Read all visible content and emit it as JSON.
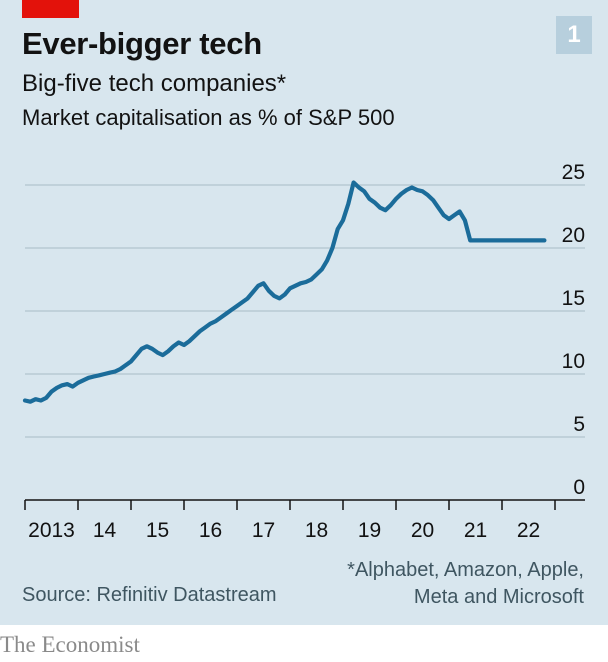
{
  "badge": "1",
  "title": "Ever-bigger tech",
  "subtitle": "Big-five tech companies*",
  "unit_label": "Market capitalisation as % of S&P 500",
  "footnote": [
    "*Alphabet, Amazon, Apple,",
    "Meta and Microsoft"
  ],
  "source": "Source: Refinitiv Datastream",
  "brand": "The Economist",
  "colors": {
    "line": "#1b6c9a",
    "panel": "#d8e6ee",
    "red_tag": "#e3120b",
    "badge": "#b7cfdd",
    "grid": "#a9bcc6"
  },
  "chart_data": {
    "type": "line",
    "title": "Big-five tech companies*",
    "ylabel": "Market capitalisation as % of S&P 500",
    "ylim": [
      0,
      25
    ],
    "yticks": [
      0,
      5,
      10,
      15,
      20,
      25
    ],
    "xlim": [
      2013.0,
      2023.0
    ],
    "xticks": [
      2013,
      2014,
      2015,
      2016,
      2017,
      2018,
      2019,
      2020,
      2021,
      2022,
      2023
    ],
    "xtick_labels": [
      "2013",
      "14",
      "15",
      "16",
      "17",
      "18",
      "19",
      "20",
      "21",
      "22"
    ],
    "grid": true,
    "series": [
      {
        "x": [
          2013.0,
          2013.1,
          2013.2,
          2013.3,
          2013.4,
          2013.5,
          2013.6,
          2013.7,
          2013.8,
          2013.9,
          2014.0,
          2014.1,
          2014.2,
          2014.3,
          2014.4,
          2014.5,
          2014.6,
          2014.7,
          2014.8,
          2014.9,
          2015.0,
          2015.1,
          2015.2,
          2015.3,
          2015.4,
          2015.5,
          2015.6,
          2015.7,
          2015.8,
          2015.9,
          2016.0,
          2016.1,
          2016.2,
          2016.3,
          2016.4,
          2016.5,
          2016.6,
          2016.7,
          2016.8,
          2016.9,
          2017.0,
          2017.1,
          2017.2,
          2017.3,
          2017.4,
          2017.5,
          2017.6,
          2017.7,
          2017.8,
          2017.9,
          2018.0,
          2018.1,
          2018.2,
          2018.3,
          2018.4,
          2018.5,
          2018.6,
          2018.7,
          2018.8,
          2018.9,
          2019.0,
          2019.1,
          2019.2,
          2019.3,
          2019.4,
          2019.5,
          2019.6,
          2019.7,
          2019.8,
          2019.9,
          2020.0,
          2020.1,
          2020.2,
          2020.3,
          2020.4,
          2020.5,
          2020.6,
          2020.7,
          2020.8,
          2020.9,
          2021.0,
          2021.1,
          2021.2,
          2021.3,
          2021.4,
          2021.5,
          2021.6,
          2021.7,
          2021.8,
          2021.9,
          2022.0,
          2022.1,
          2022.2,
          2022.3,
          2022.4,
          2022.5,
          2022.6,
          2022.7,
          2022.8
        ],
        "values": [
          7.9,
          7.8,
          8.0,
          7.9,
          8.1,
          8.6,
          8.9,
          9.1,
          9.2,
          9.0,
          9.3,
          9.5,
          9.7,
          9.8,
          9.9,
          10.0,
          10.1,
          10.2,
          10.4,
          10.7,
          11.0,
          11.5,
          12.0,
          12.2,
          12.0,
          11.7,
          11.5,
          11.8,
          12.2,
          12.5,
          12.3,
          12.6,
          13.0,
          13.4,
          13.7,
          14.0,
          14.2,
          14.5,
          14.8,
          15.1,
          15.4,
          15.7,
          16.0,
          16.5,
          17.0,
          17.2,
          16.6,
          16.2,
          16.0,
          16.3,
          16.8,
          17.0,
          17.2,
          17.3,
          17.5,
          17.9,
          18.3,
          19.0,
          20.0,
          21.5,
          22.2,
          23.5,
          25.2,
          24.8,
          24.5,
          23.9,
          23.6,
          23.2,
          23.0,
          23.4,
          23.9,
          24.3,
          24.6,
          24.8,
          24.6,
          24.5,
          24.2,
          23.8,
          23.2,
          22.6,
          22.3,
          22.6,
          22.9,
          22.2,
          20.6,
          20.6,
          20.6,
          20.6,
          20.6,
          20.6,
          20.6,
          20.6,
          20.6,
          20.6,
          20.6,
          20.6,
          20.6,
          20.6,
          20.6
        ]
      }
    ]
  }
}
